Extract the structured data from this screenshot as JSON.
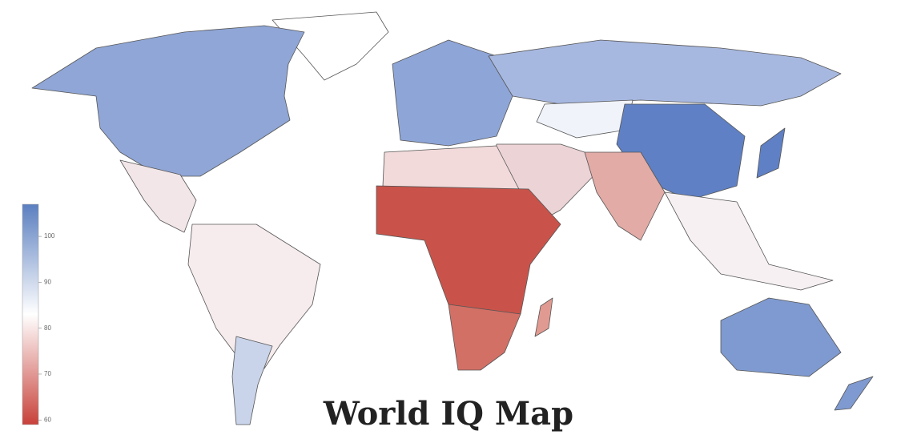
{
  "title": "World IQ Map",
  "legend": {
    "lim": [
      107,
      59
    ],
    "ticks": [
      100,
      90,
      80,
      70,
      60
    ],
    "colors": [
      "#5b7fc0",
      "#ffffff",
      "#c8413a"
    ]
  }
}
